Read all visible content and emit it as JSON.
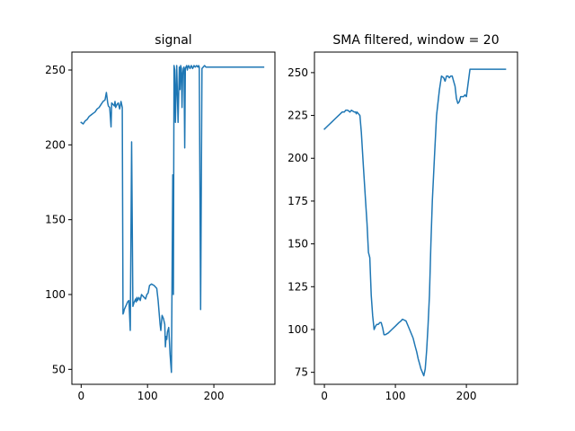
{
  "chart_data": [
    {
      "type": "line",
      "title": "signal",
      "xlabel": "",
      "ylabel": "",
      "xlim": [
        -14,
        292
      ],
      "ylim": [
        40,
        262
      ],
      "xticks": [
        0,
        100,
        200
      ],
      "yticks": [
        50,
        100,
        150,
        200,
        250
      ],
      "color": "#1f77b4",
      "series": [
        {
          "x": [
            0,
            3,
            6,
            9,
            12,
            15,
            18,
            21,
            24,
            27,
            30,
            33,
            36,
            38,
            40,
            41,
            43,
            45,
            46,
            48,
            50,
            51,
            52,
            54,
            56,
            58,
            60,
            62,
            63,
            64,
            65,
            66,
            67,
            68,
            69,
            70,
            72,
            74,
            76,
            78,
            80,
            81,
            82,
            83,
            84,
            85,
            87,
            89,
            91,
            93,
            95,
            97,
            99,
            101,
            103,
            106,
            110,
            114,
            116,
            118,
            119,
            120,
            122,
            124,
            126,
            127,
            128,
            129,
            130,
            132,
            134,
            136,
            138,
            139,
            140,
            141,
            142,
            144,
            145,
            146,
            148,
            149,
            150,
            151,
            152,
            153,
            154,
            155,
            156,
            157,
            158,
            159,
            160,
            161,
            162,
            163,
            164,
            165,
            166,
            167,
            168,
            169,
            170,
            172,
            174,
            176,
            177,
            178,
            180,
            182,
            184,
            186,
            188,
            190,
            192,
            193,
            194,
            195,
            196,
            198,
            200,
            205,
            210,
            215,
            220,
            225,
            228,
            230,
            232,
            234,
            236,
            240,
            245,
            250,
            255,
            260,
            265,
            270,
            275
          ],
          "y": [
            215,
            214,
            216,
            217,
            219,
            220,
            221,
            222,
            224,
            225,
            227,
            229,
            230,
            235,
            228,
            226,
            225,
            212,
            228,
            227,
            226,
            229,
            225,
            227,
            228,
            224,
            229,
            225,
            87,
            88,
            90,
            91,
            92,
            93,
            94,
            95,
            96,
            76,
            202,
            92,
            95,
            96,
            97,
            95,
            98,
            96,
            98,
            96,
            100,
            99,
            98,
            97,
            100,
            101,
            106,
            107,
            106,
            104,
            96,
            85,
            80,
            76,
            86,
            84,
            80,
            65,
            72,
            70,
            75,
            78,
            60,
            48,
            180,
            100,
            253,
            250,
            215,
            253,
            235,
            215,
            252,
            237,
            253,
            251,
            225,
            247,
            251,
            252,
            198,
            251,
            252,
            253,
            250,
            252,
            253,
            252,
            251,
            252,
            253,
            252,
            251,
            252,
            253,
            252,
            253,
            252,
            253,
            252,
            90,
            251,
            252,
            253,
            252,
            252,
            252,
            252,
            252,
            252,
            252,
            252,
            252,
            252,
            252,
            252,
            252,
            252,
            252,
            252,
            252,
            252,
            252,
            252,
            252,
            252,
            252,
            252,
            252,
            252,
            252
          ],
          "name": ""
        }
      ]
    },
    {
      "type": "line",
      "title": "SMA filtered, window = 20",
      "xlabel": "",
      "ylabel": "",
      "xlim": [
        -14,
        272
      ],
      "ylim": [
        68,
        262
      ],
      "xticks": [
        0,
        100,
        200
      ],
      "yticks": [
        75,
        100,
        125,
        150,
        175,
        200,
        225,
        250
      ],
      "color": "#1f77b4",
      "series": [
        {
          "x": [
            0,
            5,
            10,
            15,
            20,
            25,
            28,
            30,
            33,
            36,
            38,
            42,
            44,
            45,
            46,
            48,
            50,
            52,
            55,
            58,
            60,
            62,
            64,
            66,
            68,
            70,
            72,
            74,
            76,
            78,
            80,
            82,
            84,
            86,
            90,
            95,
            100,
            105,
            108,
            110,
            115,
            120,
            125,
            128,
            130,
            132,
            134,
            136,
            138,
            140,
            142,
            144,
            146,
            148,
            150,
            152,
            155,
            158,
            162,
            165,
            168,
            170,
            172,
            174,
            176,
            178,
            180,
            182,
            184,
            186,
            188,
            190,
            192,
            194,
            196,
            198,
            200,
            205,
            210,
            215,
            220,
            225,
            230,
            235,
            240,
            245,
            250,
            255
          ],
          "y": [
            217,
            219,
            221,
            223,
            225,
            227,
            227,
            228,
            228,
            227,
            228,
            227,
            227,
            226,
            227,
            226,
            225,
            215,
            195,
            175,
            162,
            145,
            142,
            120,
            108,
            100,
            102,
            103,
            103,
            104,
            104,
            101,
            97,
            97,
            98,
            100,
            102,
            104,
            105,
            106,
            105,
            100,
            95,
            90,
            87,
            83,
            80,
            77,
            75,
            73,
            77,
            88,
            102,
            120,
            150,
            175,
            200,
            225,
            240,
            248,
            247,
            245,
            248,
            248,
            247,
            248,
            248,
            245,
            242,
            235,
            232,
            233,
            236,
            236,
            236,
            237,
            236,
            252,
            252,
            252,
            252,
            252,
            252,
            252,
            252,
            252,
            252,
            252
          ]
        }
      ]
    }
  ]
}
